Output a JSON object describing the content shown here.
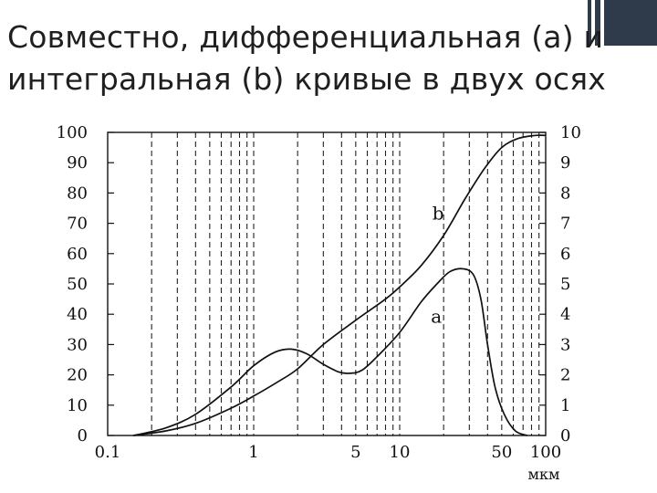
{
  "slide": {
    "title_line1": "Совместно, дифференциальная (a) и",
    "title_line2": "интегральная (b) кривые в двух осях"
  },
  "chart_data": {
    "type": "line",
    "title": "",
    "xscale": "log",
    "xlim": [
      0.1,
      100
    ],
    "ylim_left": [
      0,
      100
    ],
    "ylim_right": [
      0,
      10
    ],
    "x_unit": "мкм",
    "x_ticks": [
      {
        "v": 0.1,
        "label": "0.1"
      },
      {
        "v": 1,
        "label": "1"
      },
      {
        "v": 5,
        "label": "5"
      },
      {
        "v": 10,
        "label": "10"
      },
      {
        "v": 50,
        "label": "50"
      },
      {
        "v": 100,
        "label": "100"
      }
    ],
    "y_ticks_left": [
      "0",
      "10",
      "20",
      "30",
      "40",
      "50",
      "60",
      "70",
      "80",
      "90",
      "100"
    ],
    "y_ticks_right": [
      "0",
      "1",
      "2",
      "3",
      "4",
      "5",
      "6",
      "7",
      "8",
      "9",
      "10"
    ],
    "grid": "vertical dashed log grid",
    "series": [
      {
        "name": "a",
        "axis": "right",
        "points": [
          [
            0.15,
            0
          ],
          [
            0.25,
            0.25
          ],
          [
            0.4,
            0.7
          ],
          [
            0.7,
            1.6
          ],
          [
            1.0,
            2.3
          ],
          [
            1.4,
            2.75
          ],
          [
            1.8,
            2.85
          ],
          [
            2.3,
            2.7
          ],
          [
            3.0,
            2.35
          ],
          [
            3.8,
            2.1
          ],
          [
            4.5,
            2.05
          ],
          [
            5.5,
            2.15
          ],
          [
            7,
            2.6
          ],
          [
            10,
            3.4
          ],
          [
            14,
            4.4
          ],
          [
            18,
            5.0
          ],
          [
            22,
            5.4
          ],
          [
            27,
            5.5
          ],
          [
            32,
            5.3
          ],
          [
            36,
            4.5
          ],
          [
            40,
            3.0
          ],
          [
            45,
            1.6
          ],
          [
            52,
            0.7
          ],
          [
            62,
            0.15
          ],
          [
            75,
            0
          ]
        ]
      },
      {
        "name": "b",
        "axis": "left",
        "points": [
          [
            0.15,
            0
          ],
          [
            0.25,
            1.5
          ],
          [
            0.4,
            4
          ],
          [
            0.7,
            9
          ],
          [
            1.0,
            13
          ],
          [
            1.5,
            18
          ],
          [
            2.0,
            22
          ],
          [
            3.0,
            30
          ],
          [
            5.0,
            38
          ],
          [
            8,
            45
          ],
          [
            10,
            49
          ],
          [
            14,
            56
          ],
          [
            20,
            66
          ],
          [
            28,
            78
          ],
          [
            38,
            88
          ],
          [
            50,
            95
          ],
          [
            65,
            98
          ],
          [
            85,
            99
          ],
          [
            100,
            99
          ]
        ]
      }
    ],
    "annotations": [
      {
        "text": "b",
        "series": "b"
      },
      {
        "text": "a",
        "series": "a"
      }
    ]
  }
}
